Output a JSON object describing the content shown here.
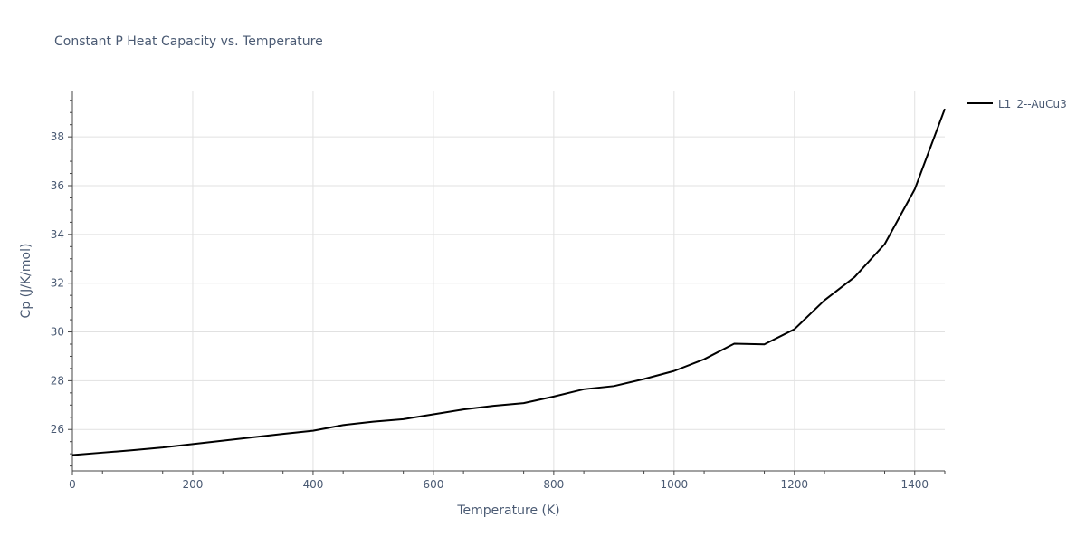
{
  "chart_data": {
    "type": "line",
    "title": "Constant P Heat Capacity vs. Temperature",
    "xlabel": "Temperature (K)",
    "ylabel": "Cp (J/K/mol)",
    "xlim": [
      0,
      1450
    ],
    "ylim": [
      24.3,
      39.9
    ],
    "x_ticks": [
      0,
      200,
      400,
      600,
      800,
      1000,
      1200,
      1400
    ],
    "x_tick_labels": [
      "0",
      "200",
      "400",
      "600",
      "800",
      "1000",
      "1200",
      "1400"
    ],
    "y_ticks": [
      26,
      28,
      30,
      32,
      34,
      36,
      38
    ],
    "y_tick_labels": [
      "26",
      "28",
      "30",
      "32",
      "34",
      "36",
      "38"
    ],
    "grid": true,
    "legend_position": "top-right",
    "series": [
      {
        "name": "L1_2--AuCu3",
        "color": "#000000",
        "x": [
          0,
          50,
          100,
          150,
          200,
          250,
          300,
          350,
          400,
          450,
          500,
          550,
          600,
          650,
          700,
          750,
          800,
          850,
          900,
          950,
          1000,
          1050,
          1100,
          1150,
          1200,
          1250,
          1300,
          1350,
          1400,
          1450
        ],
        "y": [
          24.95,
          25.05,
          25.15,
          25.26,
          25.4,
          25.54,
          25.68,
          25.82,
          25.95,
          26.18,
          26.32,
          26.42,
          26.62,
          26.82,
          26.97,
          27.08,
          27.35,
          27.65,
          27.78,
          28.07,
          28.4,
          28.88,
          29.52,
          29.49,
          30.11,
          31.3,
          32.25,
          33.6,
          35.85,
          39.15
        ]
      }
    ]
  }
}
